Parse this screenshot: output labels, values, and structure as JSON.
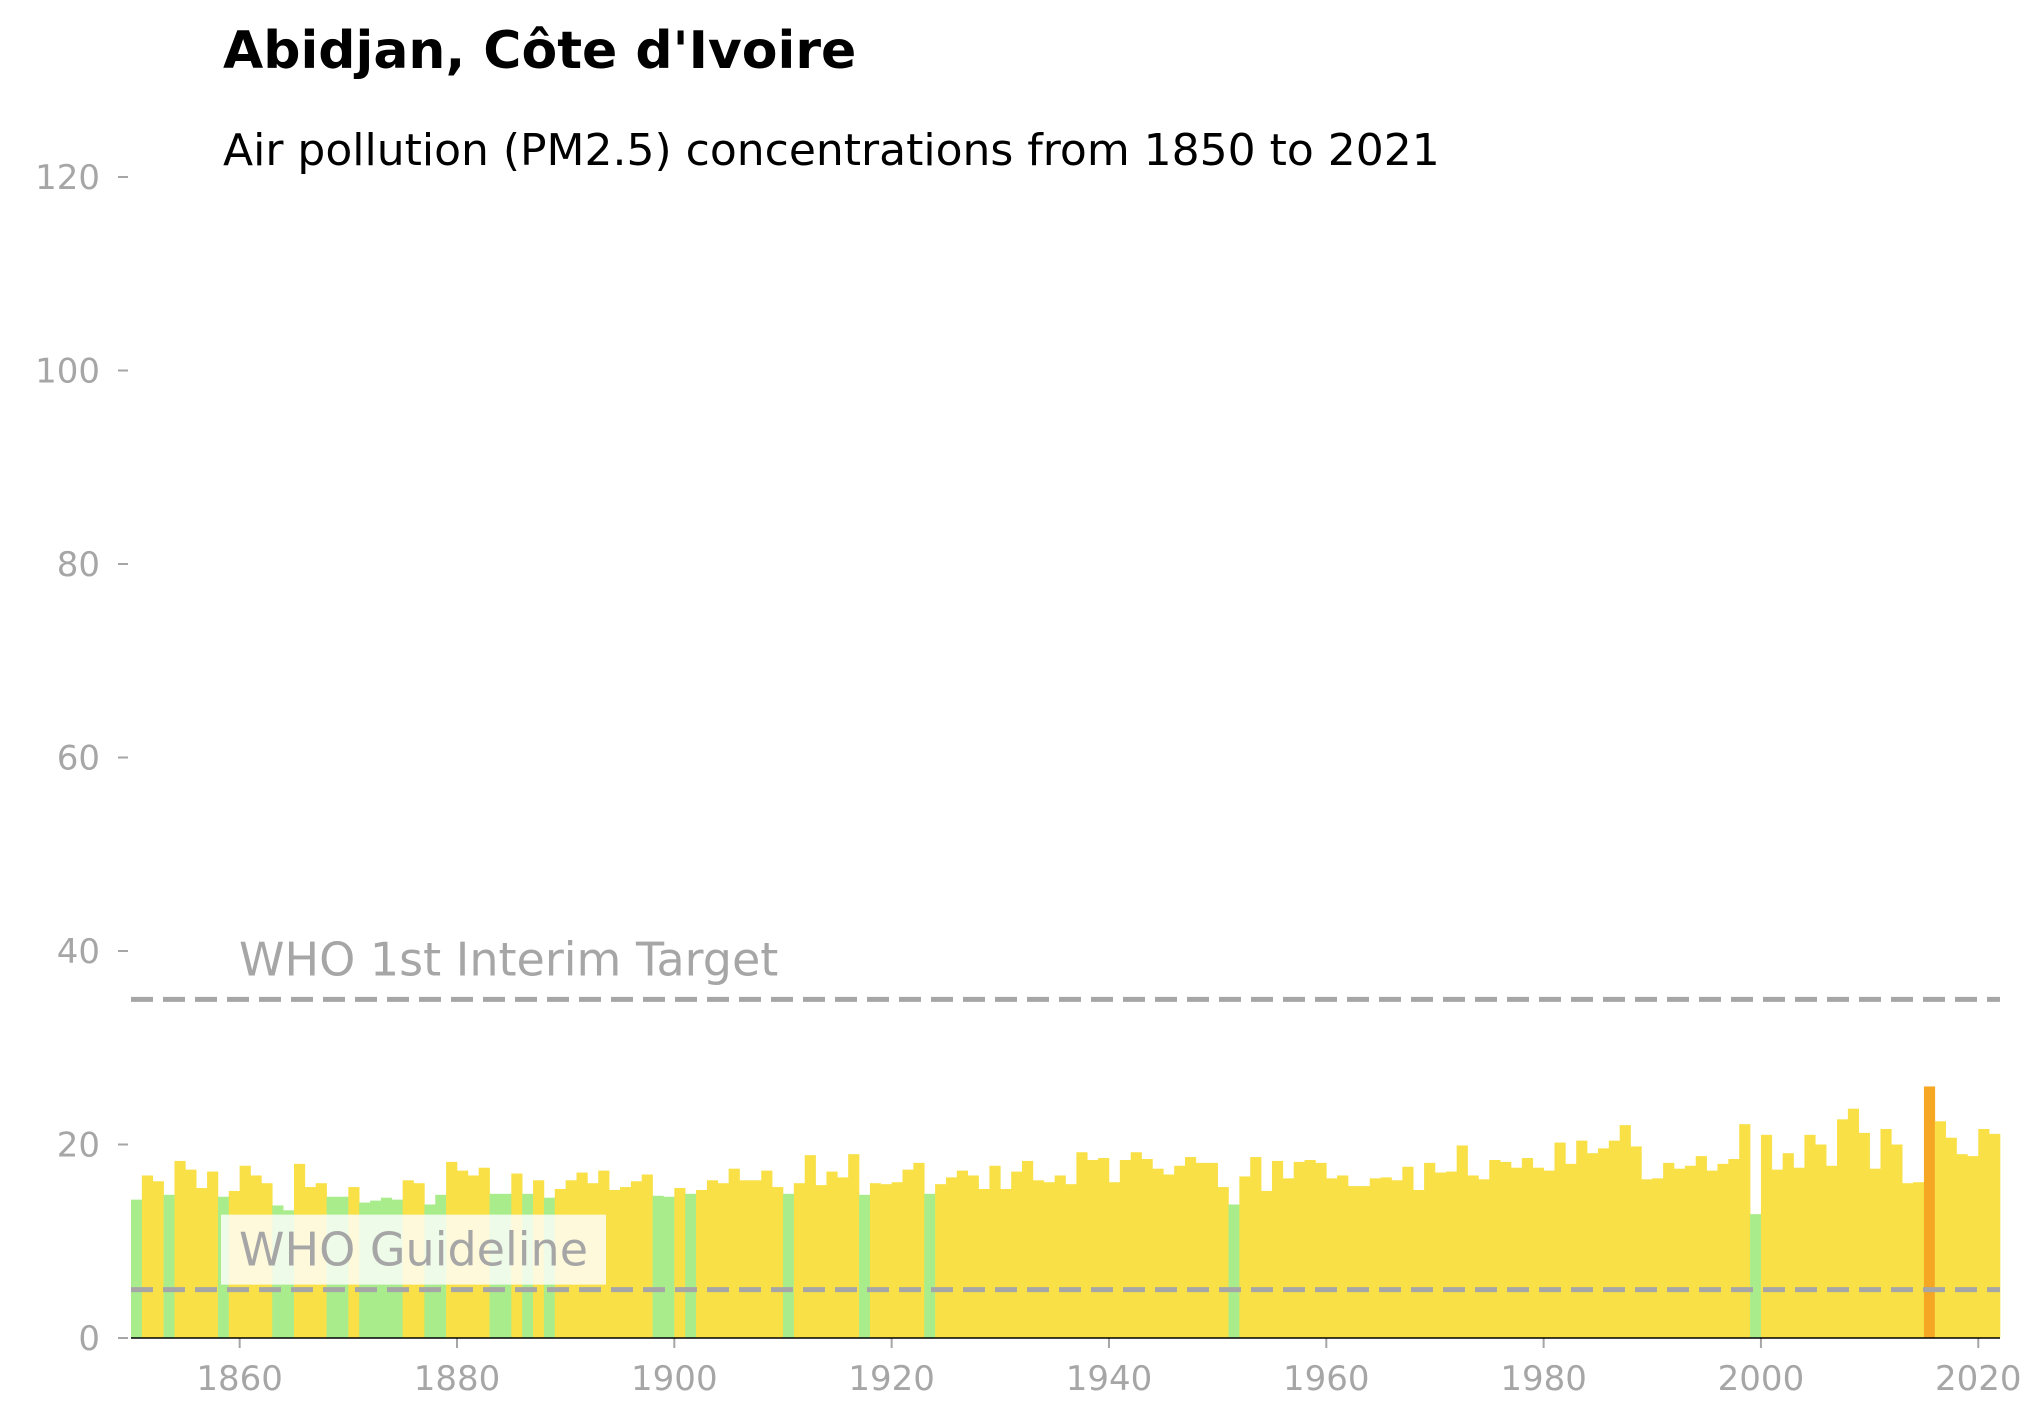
{
  "chart_data": {
    "type": "bar",
    "title": "Abidjan, Côte d'Ivoire",
    "subtitle": "Air pollution (PM2.5) concentrations from 1850 to 2021",
    "x": [
      1850,
      1851,
      1852,
      1853,
      1854,
      1855,
      1856,
      1857,
      1858,
      1859,
      1860,
      1861,
      1862,
      1863,
      1864,
      1865,
      1866,
      1867,
      1868,
      1869,
      1870,
      1871,
      1872,
      1873,
      1874,
      1875,
      1876,
      1877,
      1878,
      1879,
      1880,
      1881,
      1882,
      1883,
      1884,
      1885,
      1886,
      1887,
      1888,
      1889,
      1890,
      1891,
      1892,
      1893,
      1894,
      1895,
      1896,
      1897,
      1898,
      1899,
      1900,
      1901,
      1902,
      1903,
      1904,
      1905,
      1906,
      1907,
      1908,
      1909,
      1910,
      1911,
      1912,
      1913,
      1914,
      1915,
      1916,
      1917,
      1918,
      1919,
      1920,
      1921,
      1922,
      1923,
      1924,
      1925,
      1926,
      1927,
      1928,
      1929,
      1930,
      1931,
      1932,
      1933,
      1934,
      1935,
      1936,
      1937,
      1938,
      1939,
      1940,
      1941,
      1942,
      1943,
      1944,
      1945,
      1946,
      1947,
      1948,
      1949,
      1950,
      1951,
      1952,
      1953,
      1954,
      1955,
      1956,
      1957,
      1958,
      1959,
      1960,
      1961,
      1962,
      1963,
      1964,
      1965,
      1966,
      1967,
      1968,
      1969,
      1970,
      1971,
      1972,
      1973,
      1974,
      1975,
      1976,
      1977,
      1978,
      1979,
      1980,
      1981,
      1982,
      1983,
      1984,
      1985,
      1986,
      1987,
      1988,
      1989,
      1990,
      1991,
      1992,
      1993,
      1994,
      1995,
      1996,
      1997,
      1998,
      1999,
      2000,
      2001,
      2002,
      2003,
      2004,
      2005,
      2006,
      2007,
      2008,
      2009,
      2010,
      2011,
      2012,
      2013,
      2014,
      2015,
      2016,
      2017,
      2018,
      2019,
      2020,
      2021
    ],
    "values": [
      14.3,
      16.8,
      16.2,
      14.8,
      18.3,
      17.4,
      15.5,
      17.2,
      14.6,
      15.2,
      17.8,
      16.8,
      16.0,
      13.7,
      13.2,
      18.0,
      15.6,
      16.0,
      14.6,
      14.6,
      15.6,
      14.0,
      14.2,
      14.5,
      14.3,
      16.3,
      16.0,
      13.8,
      14.8,
      18.2,
      17.3,
      16.8,
      17.6,
      14.9,
      14.9,
      17.0,
      14.9,
      16.3,
      14.5,
      15.4,
      16.3,
      17.1,
      16.0,
      17.3,
      15.3,
      15.6,
      16.2,
      16.9,
      14.7,
      14.6,
      15.5,
      14.9,
      15.3,
      16.3,
      16.0,
      17.5,
      16.3,
      16.3,
      17.3,
      15.6,
      14.9,
      16.0,
      18.9,
      15.8,
      17.2,
      16.6,
      19.0,
      14.8,
      16.0,
      15.9,
      16.1,
      17.4,
      18.1,
      14.9,
      15.9,
      16.6,
      17.3,
      16.8,
      15.4,
      17.8,
      15.4,
      17.2,
      18.3,
      16.3,
      16.1,
      16.8,
      15.9,
      19.2,
      18.4,
      18.6,
      16.1,
      18.4,
      19.2,
      18.5,
      17.5,
      16.9,
      17.8,
      18.7,
      18.1,
      18.1,
      15.6,
      13.8,
      16.7,
      18.7,
      15.2,
      18.3,
      16.5,
      18.2,
      18.4,
      18.1,
      16.5,
      16.8,
      15.7,
      15.7,
      16.5,
      16.6,
      16.3,
      17.7,
      15.3,
      18.1,
      17.1,
      17.2,
      19.9,
      16.8,
      16.4,
      18.4,
      18.2,
      17.6,
      18.6,
      17.6,
      17.3,
      20.2,
      18.0,
      20.4,
      19.1,
      19.6,
      20.4,
      22.0,
      19.8,
      16.4,
      16.5,
      18.1,
      17.5,
      17.8,
      18.8,
      17.3,
      18.0,
      18.5,
      22.1,
      12.8,
      21.0,
      17.4,
      19.1,
      17.6,
      21.0,
      20.0,
      17.8,
      22.6,
      23.7,
      21.2,
      17.5,
      21.6,
      20.0,
      16.0,
      16.1,
      26.0,
      22.4,
      20.7,
      19.0,
      18.8,
      21.6,
      21.1
    ],
    "colors": [
      "#a8ec8c",
      "#f8e046",
      "#f8e046",
      "#a8ec8c",
      "#f8e046",
      "#f8e046",
      "#f8e046",
      "#f8e046",
      "#a8ec8c",
      "#f8e046",
      "#f8e046",
      "#f8e046",
      "#f8e046",
      "#a8ec8c",
      "#a8ec8c",
      "#f8e046",
      "#f8e046",
      "#f8e046",
      "#a8ec8c",
      "#a8ec8c",
      "#f8e046",
      "#a8ec8c",
      "#a8ec8c",
      "#a8ec8c",
      "#a8ec8c",
      "#f8e046",
      "#f8e046",
      "#a8ec8c",
      "#a8ec8c",
      "#f8e046",
      "#f8e046",
      "#f8e046",
      "#f8e046",
      "#a8ec8c",
      "#a8ec8c",
      "#f8e046",
      "#a8ec8c",
      "#f8e046",
      "#a8ec8c",
      "#f8e046",
      "#f8e046",
      "#f8e046",
      "#f8e046",
      "#f8e046",
      "#f8e046",
      "#f8e046",
      "#f8e046",
      "#f8e046",
      "#a8ec8c",
      "#a8ec8c",
      "#f8e046",
      "#a8ec8c",
      "#f8e046",
      "#f8e046",
      "#f8e046",
      "#f8e046",
      "#f8e046",
      "#f8e046",
      "#f8e046",
      "#f8e046",
      "#a8ec8c",
      "#f8e046",
      "#f8e046",
      "#f8e046",
      "#f8e046",
      "#f8e046",
      "#f8e046",
      "#a8ec8c",
      "#f8e046",
      "#f8e046",
      "#f8e046",
      "#f8e046",
      "#f8e046",
      "#a8ec8c",
      "#f8e046",
      "#f8e046",
      "#f8e046",
      "#f8e046",
      "#f8e046",
      "#f8e046",
      "#f8e046",
      "#f8e046",
      "#f8e046",
      "#f8e046",
      "#f8e046",
      "#f8e046",
      "#f8e046",
      "#f8e046",
      "#f8e046",
      "#f8e046",
      "#f8e046",
      "#f8e046",
      "#f8e046",
      "#f8e046",
      "#f8e046",
      "#f8e046",
      "#f8e046",
      "#f8e046",
      "#f8e046",
      "#f8e046",
      "#f8e046",
      "#a8ec8c",
      "#f8e046",
      "#f8e046",
      "#f8e046",
      "#f8e046",
      "#f8e046",
      "#f8e046",
      "#f8e046",
      "#f8e046",
      "#f8e046",
      "#f8e046",
      "#f8e046",
      "#f8e046",
      "#f8e046",
      "#f8e046",
      "#f8e046",
      "#f8e046",
      "#f8e046",
      "#f8e046",
      "#f8e046",
      "#f8e046",
      "#f8e046",
      "#f8e046",
      "#f8e046",
      "#f8e046",
      "#f8e046",
      "#f8e046",
      "#f8e046",
      "#f8e046",
      "#f8e046",
      "#f8e046",
      "#f8e046",
      "#f8e046",
      "#f8e046",
      "#f8e046",
      "#f8e046",
      "#f8e046",
      "#f8e046",
      "#f8e046",
      "#f8e046",
      "#f8e046",
      "#f8e046",
      "#f8e046",
      "#f8e046",
      "#f8e046",
      "#f8e046",
      "#f8e046",
      "#f8e046",
      "#a8ec8c",
      "#f8e046",
      "#f8e046",
      "#f8e046",
      "#f8e046",
      "#f8e046",
      "#f8e046",
      "#f8e046",
      "#f8e046",
      "#f8e046",
      "#f8e046",
      "#f8e046",
      "#f8e046",
      "#f8e046",
      "#f8e046",
      "#f8e046",
      "#f5a623",
      "#f8e046",
      "#f8e046",
      "#f8e046",
      "#f8e046",
      "#f8e046",
      "#f8e046"
    ],
    "xlim": [
      1850,
      2022
    ],
    "xticks": [
      1860,
      1880,
      1900,
      1920,
      1940,
      1960,
      1980,
      2000,
      2020
    ],
    "ylim": [
      0,
      120
    ],
    "yticks": [
      0,
      20,
      40,
      60,
      80,
      100,
      120
    ],
    "reference_lines": [
      {
        "value": 35,
        "label": "WHO 1st Interim Target"
      },
      {
        "value": 5,
        "label": "WHO Guideline"
      }
    ],
    "reference_color": "#a6a6a6"
  }
}
